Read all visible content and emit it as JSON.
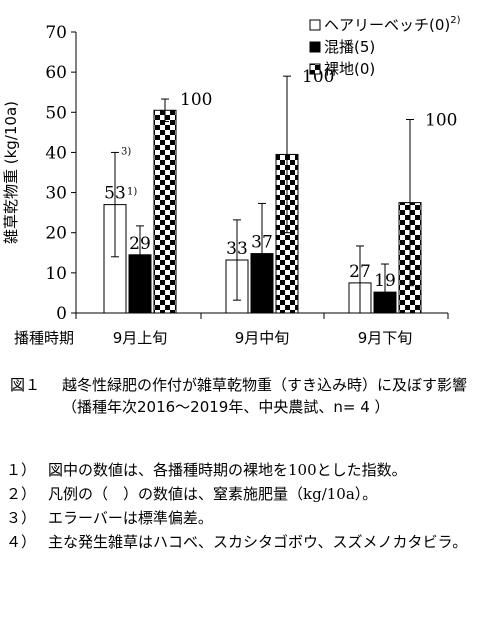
{
  "chart_data": {
    "type": "bar",
    "ylabel": "雑草乾物重 (kg/10a)",
    "ylim": [
      0,
      70
    ],
    "yticks": [
      0,
      10,
      20,
      30,
      40,
      50,
      60,
      70
    ],
    "x_axis_title": "播種時期",
    "categories": [
      "9月上旬",
      "9月中旬",
      "9月下旬"
    ],
    "series": [
      {
        "name": "ヘアリーベッチ(0)",
        "name_sup": "2)",
        "pattern": "white",
        "values": [
          27,
          13.2,
          7.5
        ],
        "errors": [
          13.0,
          10.0,
          9.2
        ],
        "labels": [
          "53",
          "33",
          "27"
        ]
      },
      {
        "name": "混播(5)",
        "name_sup": "",
        "pattern": "black",
        "values": [
          14.5,
          14.8,
          5.2
        ],
        "errors": [
          7.2,
          12.5,
          7.0
        ],
        "labels": [
          "29",
          "37",
          "19"
        ]
      },
      {
        "name": "裸地(0)",
        "name_sup": "",
        "pattern": "checker",
        "values": [
          50.5,
          39.5,
          27.5
        ],
        "errors": [
          2.8,
          19.5,
          20.7
        ],
        "labels": [
          "100",
          "100",
          "100"
        ]
      }
    ],
    "annotations": {
      "label_note": "1)",
      "error_note": "3)"
    },
    "legend_position": "top-right"
  },
  "caption": {
    "number": "図１",
    "title": "越冬性緑肥の作付が雑草乾物重（すき込み時）に及ぼす影響",
    "subtitle": "（播種年次2016〜2019年、中央農試、n= 4 ）"
  },
  "notes": [
    {
      "mark": "１）",
      "text": "図中の数値は、各播種時期の裸地を100とした指数。"
    },
    {
      "mark": "２）",
      "text": "凡例の（　）の数値は、窒素施肥量（kg/10a）。"
    },
    {
      "mark": "３）",
      "text": "エラーバーは標準偏差。"
    },
    {
      "mark": "４）",
      "text": "主な発生雑草はハコベ、スカシタゴボウ、スズメノカタビラ。"
    }
  ]
}
